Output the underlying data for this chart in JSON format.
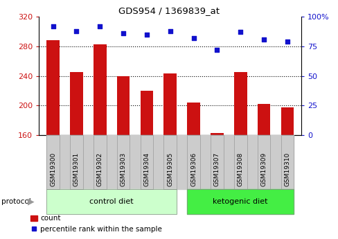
{
  "title": "GDS954 / 1369839_at",
  "samples": [
    "GSM19300",
    "GSM19301",
    "GSM19302",
    "GSM19303",
    "GSM19304",
    "GSM19305",
    "GSM19306",
    "GSM19307",
    "GSM19308",
    "GSM19309",
    "GSM19310"
  ],
  "bar_values": [
    288,
    245,
    283,
    240,
    220,
    243,
    204,
    163,
    245,
    202,
    197
  ],
  "dot_values": [
    92,
    88,
    92,
    86,
    85,
    88,
    82,
    72,
    87,
    81,
    79
  ],
  "ylim_left": [
    160,
    320
  ],
  "ylim_right": [
    0,
    100
  ],
  "yticks_left": [
    160,
    200,
    240,
    280,
    320
  ],
  "yticks_right": [
    0,
    25,
    50,
    75,
    100
  ],
  "bar_color": "#cc1111",
  "dot_color": "#1111cc",
  "control_group_count": 6,
  "ketogenic_group_count": 5,
  "control_label": "control diet",
  "ketogenic_label": "ketogenic diet",
  "protocol_label": "protocol",
  "legend_count": "count",
  "legend_percentile": "percentile rank within the sample",
  "control_bg": "#ccffcc",
  "ketogenic_bg": "#44ee44",
  "xlabel_bg": "#cccccc",
  "bar_base": 160,
  "n_control": 6,
  "n_keto": 5
}
